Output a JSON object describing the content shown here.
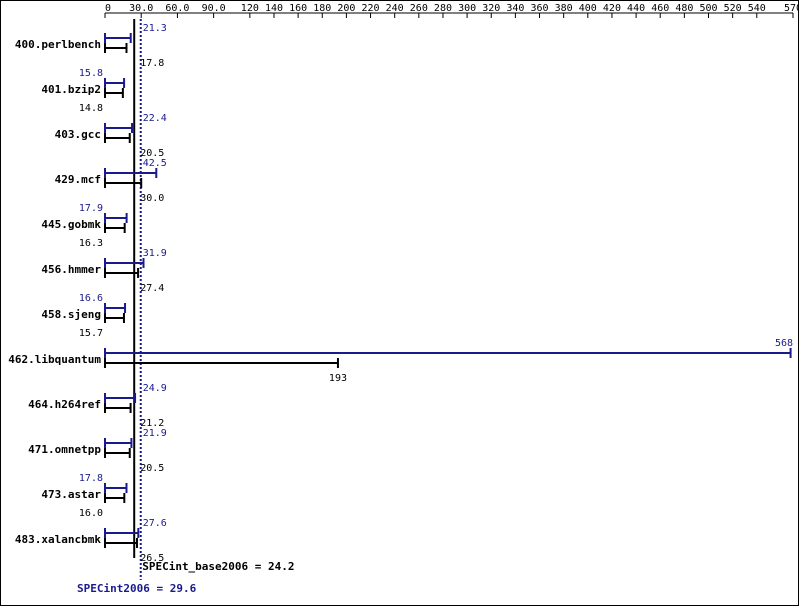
{
  "chart_data": {
    "type": "bar",
    "x_ticks": [
      "0",
      "30.0",
      "60.0",
      "90.0",
      "120",
      "140",
      "160",
      "180",
      "200",
      "220",
      "240",
      "260",
      "280",
      "300",
      "320",
      "340",
      "360",
      "380",
      "400",
      "420",
      "440",
      "460",
      "480",
      "500",
      "520",
      "540",
      "570"
    ],
    "x_tick_values": [
      0,
      30,
      60,
      90,
      120,
      140,
      160,
      180,
      200,
      220,
      240,
      260,
      280,
      300,
      320,
      340,
      360,
      380,
      400,
      420,
      440,
      460,
      480,
      500,
      520,
      540,
      570
    ],
    "xlim": [
      0,
      570
    ],
    "categories": [
      "400.perlbench",
      "401.bzip2",
      "403.gcc",
      "429.mcf",
      "445.gobmk",
      "456.hmmer",
      "458.sjeng",
      "462.libquantum",
      "464.h264ref",
      "471.omnetpp",
      "473.astar",
      "483.xalancbmk"
    ],
    "series": [
      {
        "key": "peak",
        "color": "#1a1a8c",
        "values": [
          21.3,
          15.8,
          22.4,
          42.5,
          17.9,
          31.9,
          16.6,
          568,
          24.9,
          21.9,
          17.8,
          27.6
        ],
        "labels": [
          "21.3",
          "15.8",
          "22.4",
          "42.5",
          "17.9",
          "31.9",
          "16.6",
          "568",
          "24.9",
          "21.9",
          "17.8",
          "27.6"
        ]
      },
      {
        "key": "base",
        "color": "#000000",
        "values": [
          17.8,
          14.8,
          20.5,
          30.0,
          16.3,
          27.4,
          15.7,
          193,
          21.2,
          20.5,
          16.0,
          26.5
        ],
        "labels": [
          "17.8",
          "14.8",
          "20.5",
          "30.0",
          "16.3",
          "27.4",
          "15.7",
          "193",
          "21.2",
          "20.5",
          "16.0",
          "26.5"
        ]
      }
    ],
    "reference_lines": [
      {
        "key": "base_mean",
        "value": 24.2,
        "label": "SPECint_base2006 = 24.2",
        "color": "#000000",
        "style": "solid"
      },
      {
        "key": "peak_mean",
        "value": 29.6,
        "label": "SPECint2006 = 29.6",
        "color": "#1a1a8c",
        "style": "dotted"
      }
    ],
    "grid": false,
    "legend": "none"
  }
}
